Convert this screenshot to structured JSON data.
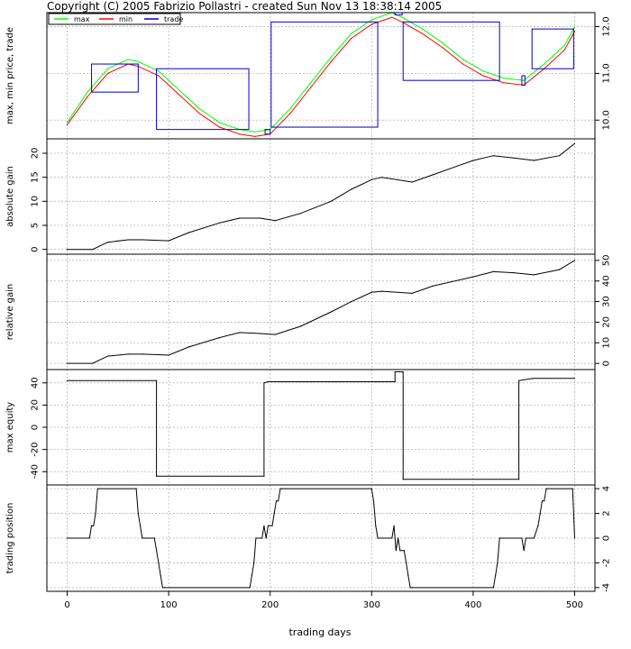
{
  "title": "Copyright (C) 2005 Fabrizio Pollastri - created Sun Nov 13 18:38:14 2005",
  "x_axis": {
    "label": "trading days",
    "range": [
      -20,
      520
    ],
    "ticks": [
      0,
      100,
      200,
      300,
      400,
      500
    ],
    "tick_labels": [
      "0",
      "100",
      "200",
      "300",
      "400",
      "500"
    ]
  },
  "colors": {
    "max": "#00ff00",
    "min": "#ff0000",
    "trade": "#0000cc",
    "line": "#000000",
    "grid": "#b5b5b5"
  },
  "chart_data": [
    {
      "type": "line",
      "ylabel": "max, min price, trade",
      "y_range": [
        9.6,
        12.3
      ],
      "yticks": [
        10.0,
        11.0,
        12.0
      ],
      "ytick_labels": [
        "10.0",
        "11.0",
        "12.0"
      ],
      "ytick_side": "right",
      "grid": true,
      "legend": {
        "placement": "top-left",
        "entries": [
          "max",
          "min",
          "trade"
        ]
      },
      "series": [
        {
          "name": "max",
          "x": [
            0,
            20,
            40,
            60,
            70,
            90,
            110,
            130,
            150,
            170,
            185,
            200,
            220,
            240,
            260,
            280,
            300,
            320,
            330,
            350,
            370,
            390,
            410,
            430,
            450,
            470,
            490,
            500
          ],
          "values": [
            9.95,
            10.6,
            11.1,
            11.3,
            11.25,
            11.05,
            10.65,
            10.25,
            9.95,
            9.8,
            9.75,
            9.8,
            10.25,
            10.8,
            11.35,
            11.85,
            12.15,
            12.3,
            12.2,
            11.95,
            11.65,
            11.3,
            11.05,
            10.9,
            10.85,
            11.2,
            11.6,
            12.0
          ]
        },
        {
          "name": "min",
          "x": [
            0,
            20,
            40,
            60,
            70,
            90,
            110,
            130,
            150,
            170,
            185,
            200,
            220,
            240,
            260,
            280,
            300,
            320,
            330,
            350,
            370,
            390,
            410,
            430,
            450,
            470,
            490,
            500
          ],
          "values": [
            9.9,
            10.5,
            11.0,
            11.2,
            11.15,
            10.95,
            10.55,
            10.15,
            9.85,
            9.7,
            9.65,
            9.7,
            10.15,
            10.7,
            11.25,
            11.75,
            12.05,
            12.2,
            12.1,
            11.85,
            11.55,
            11.2,
            10.95,
            10.8,
            10.75,
            11.1,
            11.5,
            11.9
          ]
        }
      ],
      "trades": [
        {
          "x0": 24,
          "x1": 70,
          "y0": 10.6,
          "y1": 11.2
        },
        {
          "x0": 88,
          "x1": 179,
          "y0": 9.8,
          "y1": 11.1
        },
        {
          "x0": 195,
          "x1": 200,
          "y0": 9.7,
          "y1": 9.8
        },
        {
          "x0": 201,
          "x1": 306,
          "y0": 9.85,
          "y1": 12.1
        },
        {
          "x0": 323,
          "x1": 330,
          "y0": 12.25,
          "y1": 12.35
        },
        {
          "x0": 331,
          "x1": 426,
          "y0": 10.85,
          "y1": 12.1
        },
        {
          "x0": 448,
          "x1": 451,
          "y0": 10.75,
          "y1": 10.95
        },
        {
          "x0": 458,
          "x1": 499,
          "y0": 11.1,
          "y1": 11.95
        }
      ]
    },
    {
      "type": "line",
      "ylabel": "absolute gain",
      "y_range": [
        -1,
        23
      ],
      "yticks": [
        0,
        5,
        10,
        15,
        20
      ],
      "ytick_labels": [
        "0",
        "5",
        "10",
        "15",
        "20"
      ],
      "ytick_side": "left",
      "grid": true,
      "series": [
        {
          "x": [
            0,
            25,
            40,
            60,
            75,
            100,
            120,
            150,
            170,
            190,
            205,
            230,
            260,
            280,
            300,
            310,
            340,
            360,
            400,
            420,
            440,
            460,
            485,
            500
          ],
          "values": [
            0,
            0,
            1.5,
            2.0,
            2.0,
            1.8,
            3.5,
            5.5,
            6.5,
            6.5,
            6.0,
            7.5,
            10.0,
            12.5,
            14.5,
            15.0,
            14.0,
            15.5,
            18.5,
            19.5,
            19.0,
            18.5,
            19.5,
            22.0
          ]
        }
      ]
    },
    {
      "type": "line",
      "ylabel": "relative gain",
      "y_range": [
        -3,
        53
      ],
      "yticks": [
        0,
        10,
        20,
        30,
        40,
        50
      ],
      "ytick_labels": [
        "0",
        "10",
        "20",
        "30",
        "40",
        "50"
      ],
      "ytick_side": "right",
      "grid": true,
      "series": [
        {
          "x": [
            0,
            25,
            40,
            60,
            75,
            100,
            120,
            150,
            170,
            190,
            205,
            230,
            260,
            280,
            300,
            310,
            340,
            360,
            400,
            420,
            440,
            460,
            485,
            500
          ],
          "values": [
            0,
            0,
            3.5,
            4.5,
            4.5,
            4.0,
            8.0,
            12.5,
            15.0,
            14.5,
            14.0,
            18.0,
            25.0,
            30.0,
            34.5,
            35.0,
            34.0,
            37.5,
            42.0,
            44.5,
            44.0,
            43.0,
            45.5,
            50.0
          ]
        }
      ]
    },
    {
      "type": "line",
      "ylabel": "max equity",
      "y_range": [
        -52,
        52
      ],
      "yticks": [
        -40,
        -20,
        0,
        20,
        40
      ],
      "ytick_labels": [
        "-40",
        "-20",
        "0",
        "20",
        "40"
      ],
      "ytick_side": "left",
      "grid": true,
      "series": [
        {
          "x": [
            0,
            88,
            88,
            194,
            194,
            198,
            300,
            323,
            323,
            331,
            331,
            445,
            445,
            459,
            500
          ],
          "values": [
            42,
            42,
            -44,
            -44,
            40,
            41,
            41,
            41,
            50,
            50,
            -47,
            -47,
            42,
            44,
            44
          ]
        }
      ]
    },
    {
      "type": "line",
      "ylabel": "trading position",
      "y_range": [
        -4.3,
        4.3
      ],
      "yticks": [
        -4,
        -2,
        0,
        2,
        4
      ],
      "ytick_labels": [
        "-4",
        "-2",
        "0",
        "2",
        "4"
      ],
      "ytick_side": "right",
      "grid": true,
      "series": [
        {
          "x": [
            0,
            22,
            24,
            26,
            28,
            30,
            68,
            70,
            72,
            74,
            76,
            86,
            88,
            90,
            92,
            94,
            96,
            180,
            182,
            184,
            186,
            192,
            194,
            196,
            198,
            202,
            204,
            206,
            208,
            210,
            212,
            300,
            302,
            304,
            306,
            320,
            322,
            324,
            326,
            328,
            332,
            334,
            336,
            338,
            340,
            420,
            422,
            424,
            426,
            448,
            450,
            452,
            460,
            464,
            466,
            468,
            470,
            472,
            498,
            500
          ],
          "values": [
            0,
            0,
            1,
            1,
            2,
            4,
            4,
            2,
            1,
            0,
            0,
            0,
            -1,
            -2,
            -3,
            -4,
            -4,
            -4,
            -3,
            -2,
            0,
            0,
            1,
            0,
            1,
            1,
            2,
            3,
            3,
            4,
            4,
            4,
            3,
            1,
            0,
            0,
            1,
            -1,
            0,
            -1,
            -1,
            -2,
            -3,
            -4,
            -4,
            -4,
            -3,
            -2,
            0,
            0,
            -1,
            0,
            0,
            1,
            2,
            3,
            3,
            4,
            4,
            0
          ]
        }
      ]
    }
  ]
}
